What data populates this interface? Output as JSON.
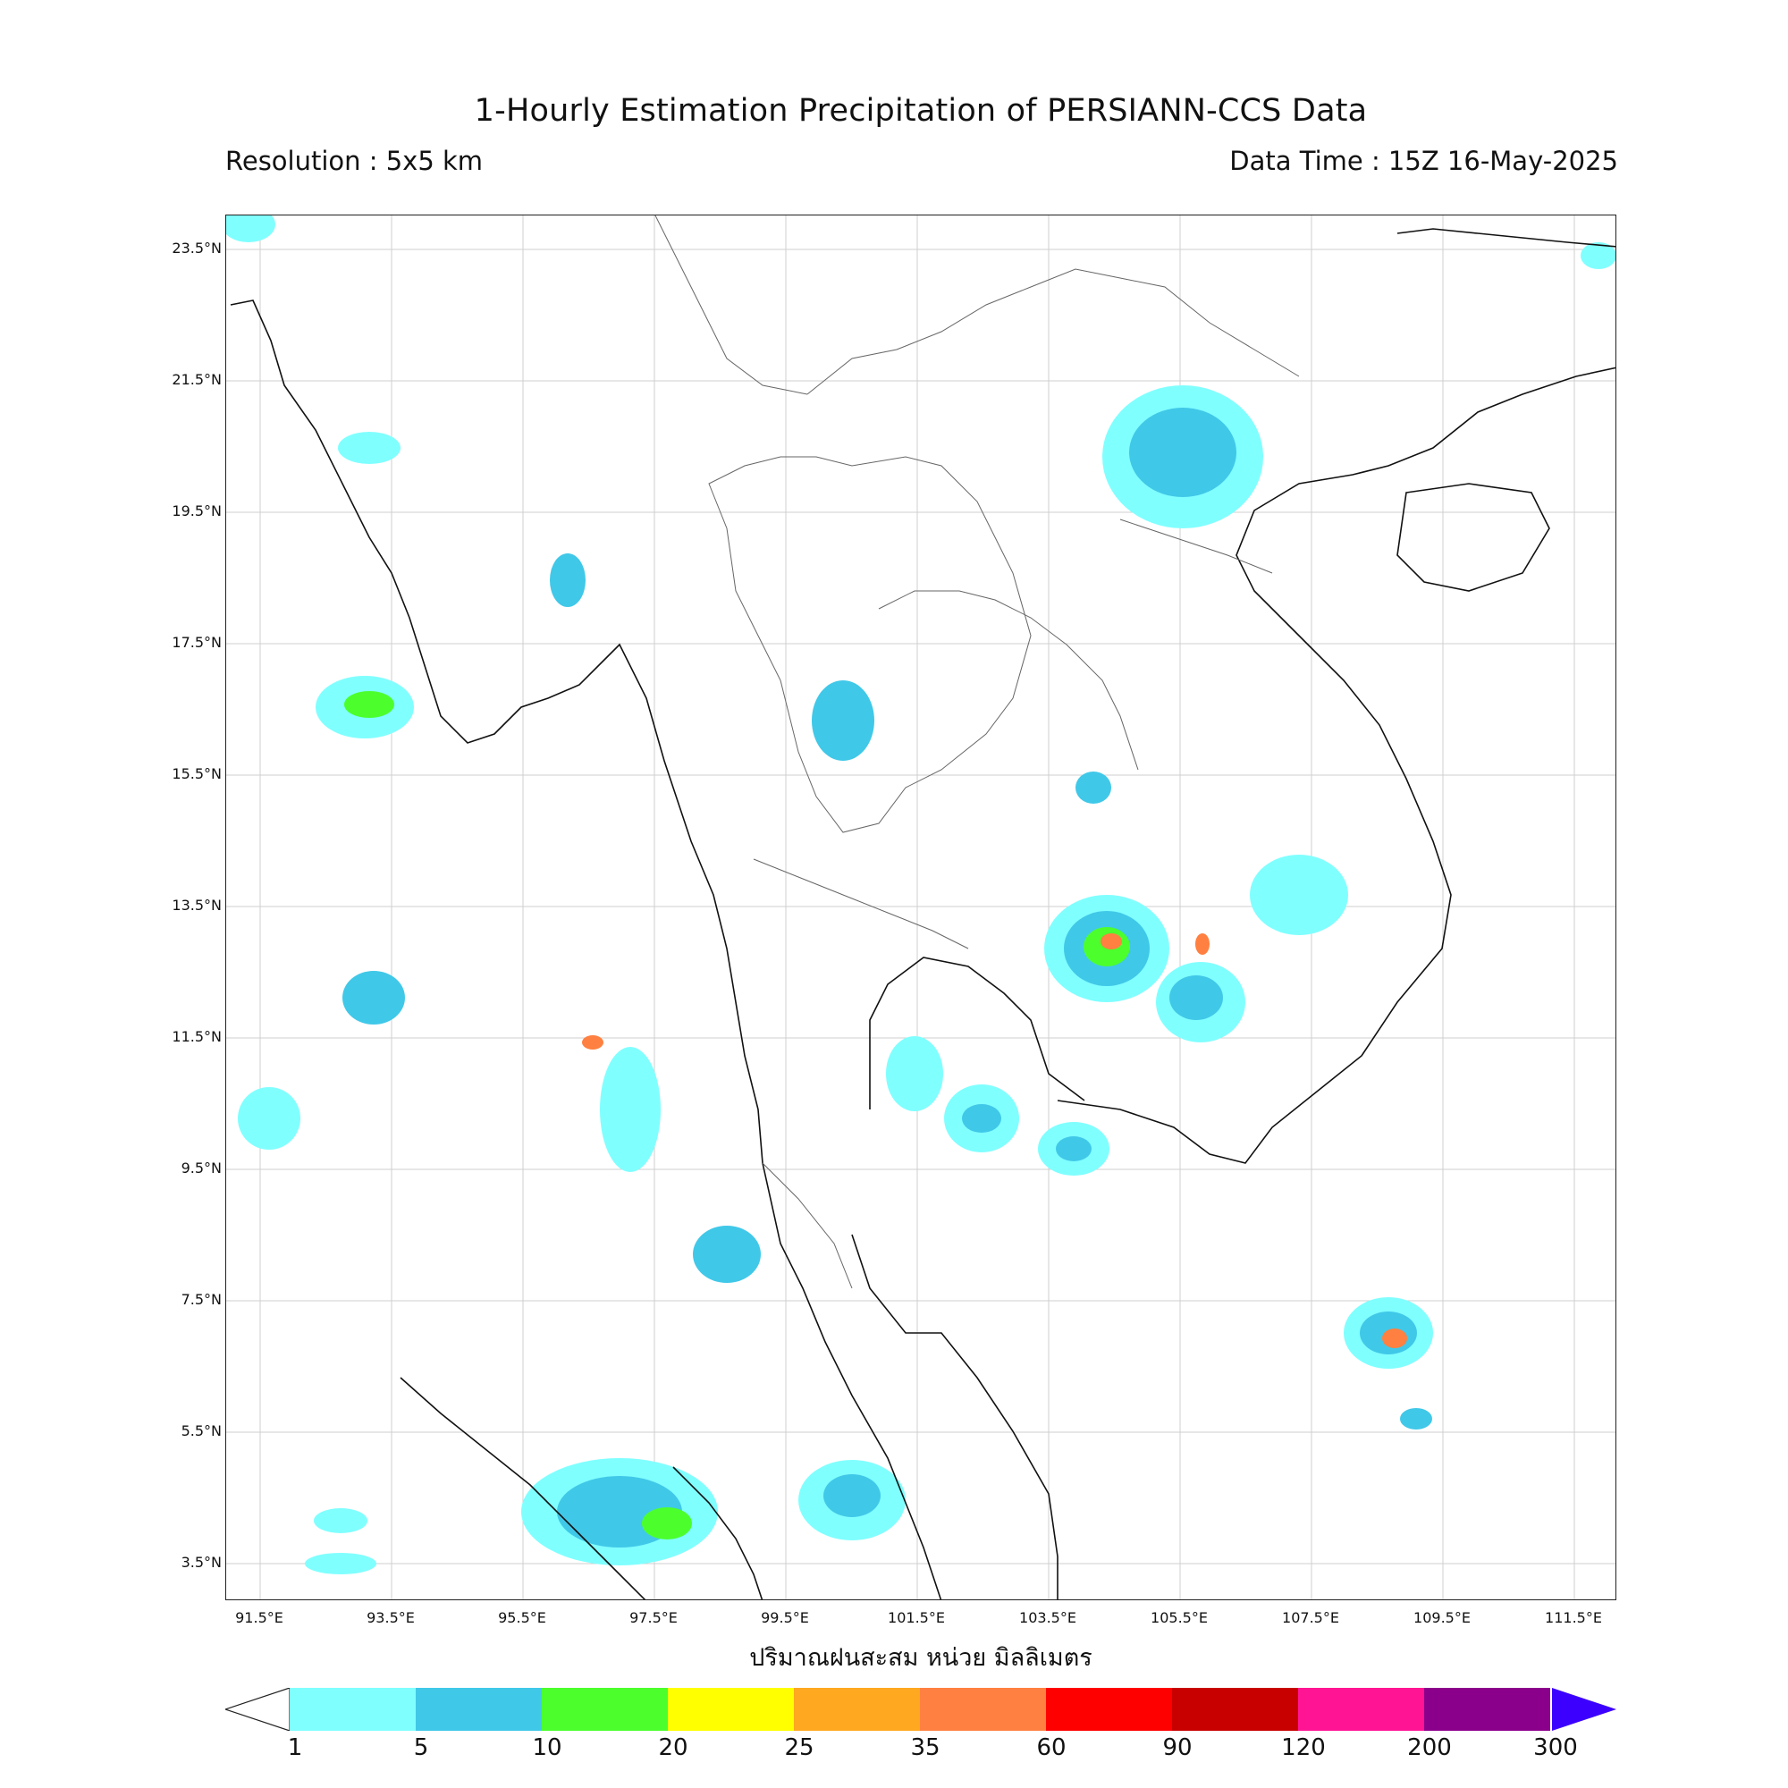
{
  "title": "1-Hourly Estimation Precipitation of PERSIANN-CCS Data",
  "resolution": "Resolution : 5x5 km",
  "data_time": "Data Time : 15Z 16-May-2025",
  "unit_label": "ปริมาณฝนสะสม หน่วย มิลลิเมตร",
  "lat_labels": [
    "23.5°N",
    "21.5°N",
    "19.5°N",
    "17.5°N",
    "15.5°N",
    "13.5°N",
    "11.5°N",
    "9.5°N",
    "7.5°N",
    "5.5°N",
    "3.5°N"
  ],
  "lon_labels": [
    "91.5°E",
    "93.5°E",
    "95.5°E",
    "97.5°E",
    "99.5°E",
    "101.5°E",
    "103.5°E",
    "105.5°E",
    "107.5°E",
    "109.5°E",
    "111.5°E"
  ],
  "colorbar": {
    "ticks": [
      "1",
      "5",
      "10",
      "20",
      "25",
      "35",
      "60",
      "90",
      "120",
      "200",
      "300"
    ],
    "colors": [
      "#80ffff",
      "#40c8e8",
      "#4cff2c",
      "#ffff00",
      "#ffa820",
      "#ff8040",
      "#ff0000",
      "#c80000",
      "#ff1493",
      "#8b008b"
    ],
    "over_color": "#3c00ff",
    "under_color": "#ffffff"
  }
}
